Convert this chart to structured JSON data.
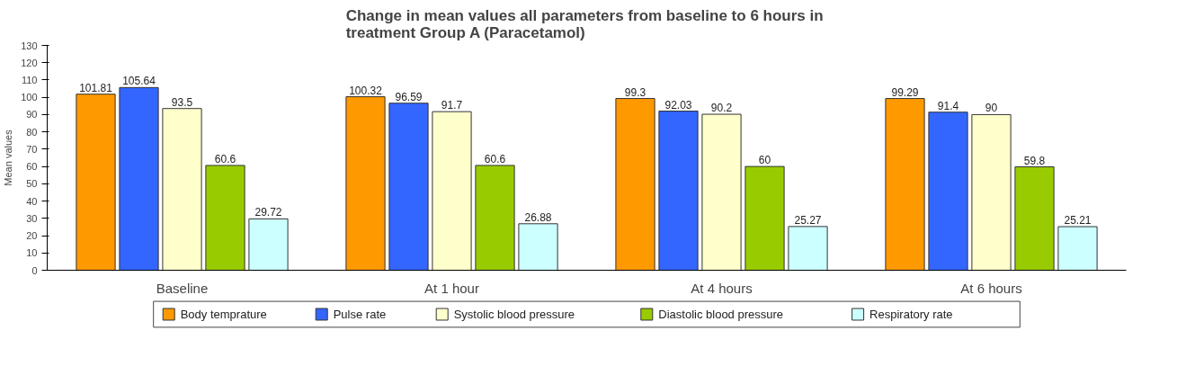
{
  "chart_data": {
    "type": "bar",
    "title": "Change in mean values all parameters from baseline to  6 hours in\ntreatment Group A (Paracetamol)",
    "ylabel": "Mean values",
    "categories": [
      "Baseline",
      "At 1 hour",
      "At 4 hours",
      "At 6 hours"
    ],
    "series": [
      {
        "name": "Body temprature",
        "color": "#ff9900",
        "values": [
          101.81,
          100.32,
          99.3,
          99.29
        ]
      },
      {
        "name": "Pulse rate",
        "color": "#3366ff",
        "values": [
          105.64,
          96.59,
          92.03,
          91.4
        ]
      },
      {
        "name": "Systolic blood pressure",
        "color": "#ffffcc",
        "values": [
          93.5,
          91.7,
          90.2,
          90
        ]
      },
      {
        "name": "Diastolic blood pressure",
        "color": "#99cc00",
        "values": [
          60.6,
          60.6,
          60,
          59.8
        ]
      },
      {
        "name": "Respiratory rate",
        "color": "#ccffff",
        "values": [
          29.72,
          26.88,
          25.27,
          25.21
        ]
      }
    ],
    "ylim": [
      0,
      130
    ],
    "yticks": [
      0,
      10,
      20,
      30,
      40,
      50,
      60,
      70,
      80,
      90,
      100,
      110,
      120,
      130
    ],
    "grid": false,
    "legend": "bottom",
    "data_labels": true
  }
}
